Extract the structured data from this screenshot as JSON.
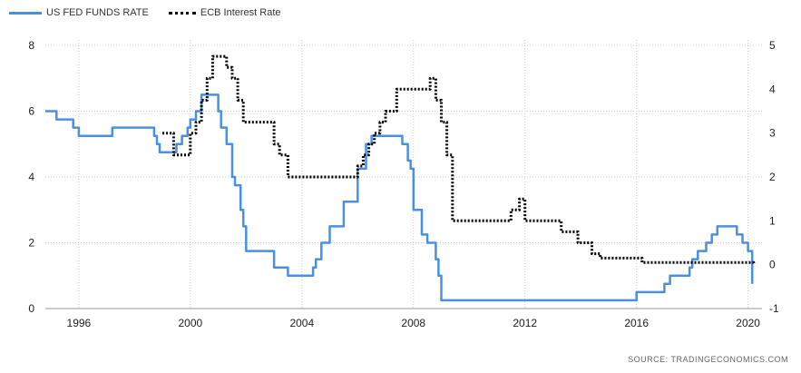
{
  "legend": {
    "series1": "US FED FUNDS RATE",
    "series2": "ECB Interest Rate"
  },
  "source": "SOURCE:  TRADINGECONOMICS.COM",
  "colors": {
    "us": "#4a90e2",
    "ecb": "#000000",
    "grid": "#cccccc"
  },
  "chart_data": {
    "type": "line",
    "xlim": [
      1994.8,
      2020.5
    ],
    "x_ticks": [
      "1996",
      "2000",
      "2004",
      "2008",
      "2012",
      "2016",
      "2020"
    ],
    "y_left_lim": [
      0,
      8
    ],
    "y_left_ticks": [
      "0",
      "2",
      "4",
      "6",
      "8"
    ],
    "y_right_lim": [
      -1,
      5
    ],
    "y_right_ticks": [
      "-1",
      "0",
      "1",
      "2",
      "3",
      "4",
      "5"
    ],
    "grid": true,
    "legend_position": "top-left",
    "series": [
      {
        "name": "US FED FUNDS RATE",
        "axis": "left",
        "style": "solid",
        "x": [
          1994.8,
          1995.0,
          1995.2,
          1995.5,
          1995.8,
          1996.0,
          1996.5,
          1997.0,
          1997.2,
          1997.5,
          1998.0,
          1998.5,
          1998.7,
          1998.8,
          1998.9,
          1999.2,
          1999.5,
          1999.7,
          1999.9,
          2000.0,
          2000.2,
          2000.4,
          2000.8,
          2001.0,
          2001.1,
          2001.3,
          2001.5,
          2001.6,
          2001.8,
          2001.9,
          2002.0,
          2002.9,
          2003.0,
          2003.3,
          2003.5,
          2003.6,
          2004.0,
          2004.4,
          2004.5,
          2004.7,
          2005.0,
          2005.5,
          2006.0,
          2006.3,
          2006.5,
          2007.0,
          2007.5,
          2007.6,
          2007.8,
          2007.9,
          2008.0,
          2008.1,
          2008.3,
          2008.5,
          2008.8,
          2008.9,
          2009.0,
          2015.8,
          2016.0,
          2016.9,
          2017.0,
          2017.2,
          2017.5,
          2017.9,
          2018.0,
          2018.2,
          2018.5,
          2018.7,
          2018.9,
          2019.0,
          2019.5,
          2019.6,
          2019.8,
          2020.0,
          2020.1,
          2020.15
        ],
        "values": [
          6.0,
          6.0,
          5.75,
          5.75,
          5.5,
          5.25,
          5.25,
          5.25,
          5.5,
          5.5,
          5.5,
          5.5,
          5.25,
          5.0,
          4.75,
          4.75,
          5.0,
          5.25,
          5.5,
          5.75,
          6.0,
          6.5,
          6.5,
          6.0,
          5.5,
          5.0,
          4.0,
          3.75,
          3.0,
          2.5,
          1.75,
          1.75,
          1.25,
          1.25,
          1.0,
          1.0,
          1.0,
          1.25,
          1.5,
          2.0,
          2.5,
          3.25,
          4.25,
          5.0,
          5.25,
          5.25,
          5.25,
          5.0,
          4.5,
          4.25,
          3.0,
          3.0,
          2.25,
          2.0,
          1.5,
          1.0,
          0.25,
          0.25,
          0.5,
          0.5,
          0.75,
          1.0,
          1.0,
          1.25,
          1.5,
          1.75,
          2.0,
          2.25,
          2.5,
          2.5,
          2.5,
          2.25,
          2.0,
          1.75,
          1.75,
          0.75
        ]
      },
      {
        "name": "ECB Interest Rate",
        "axis": "right",
        "style": "dotted",
        "x": [
          1999.0,
          1999.3,
          1999.4,
          1999.9,
          2000.0,
          2000.2,
          2000.4,
          2000.6,
          2000.8,
          2001.3,
          2001.5,
          2001.7,
          2001.9,
          2002.9,
          2003.0,
          2003.2,
          2003.5,
          2005.9,
          2006.0,
          2006.2,
          2006.4,
          2006.6,
          2006.8,
          2007.0,
          2007.4,
          2008.5,
          2008.6,
          2008.8,
          2009.0,
          2009.2,
          2009.4,
          2011.3,
          2011.5,
          2011.8,
          2012.0,
          2012.5,
          2013.3,
          2013.9,
          2014.4,
          2014.7,
          2016.2,
          2020.2
        ],
        "values": [
          3.0,
          3.0,
          2.5,
          2.5,
          3.0,
          3.25,
          3.75,
          4.25,
          4.75,
          4.5,
          4.25,
          3.75,
          3.25,
          3.25,
          2.75,
          2.5,
          2.0,
          2.0,
          2.25,
          2.5,
          2.75,
          3.0,
          3.25,
          3.5,
          4.0,
          4.0,
          4.25,
          3.75,
          3.25,
          2.5,
          1.0,
          1.0,
          1.25,
          1.5,
          1.0,
          1.0,
          0.75,
          0.5,
          0.25,
          0.15,
          0.05,
          0.0
        ]
      }
    ]
  }
}
